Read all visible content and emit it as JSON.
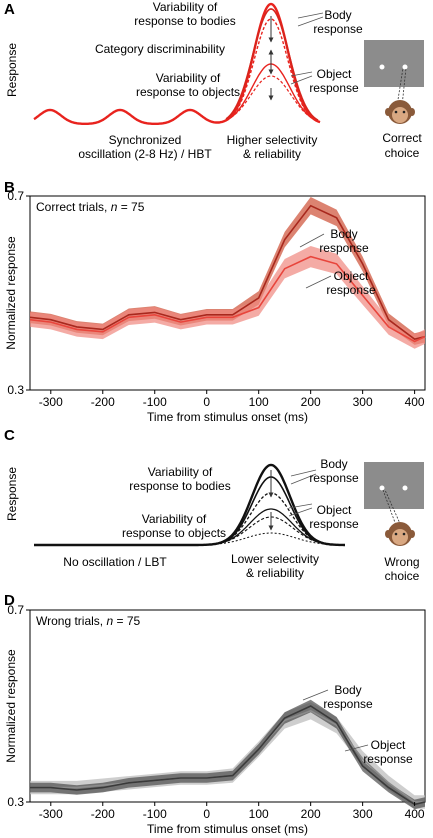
{
  "panels": [
    {
      "letter": "A",
      "type": "schematic",
      "ylabel": "Response",
      "annotations": {
        "var_bodies_1": "Variability of",
        "var_bodies_2": "response to bodies",
        "category": "Category discriminability",
        "var_objects_1": "Variability of",
        "var_objects_2": "response to objects",
        "body_1": "Body",
        "body_2": "response",
        "object_1": "Object",
        "object_2": "response",
        "osc_1": "Synchronized",
        "osc_2": "oscillation (2-8 Hz) / HBT",
        "sel_1": "Higher selectivity",
        "sel_2": "& reliability",
        "choice_1": "Correct",
        "choice_2": "choice"
      },
      "color": "#e8231e"
    },
    {
      "letter": "C",
      "type": "schematic",
      "ylabel": "Response",
      "annotations": {
        "var_bodies_1": "Variability of",
        "var_bodies_2": "response to bodies",
        "var_objects_1": "Variability of",
        "var_objects_2": "response to objects",
        "body_1": "Body",
        "body_2": "response",
        "object_1": "Object",
        "object_2": "response",
        "osc_1": "No oscillation / LBT",
        "sel_1": "Lower selectivity",
        "sel_2": "& reliability",
        "choice_1": "Wrong",
        "choice_2": "choice"
      },
      "color": "#111111"
    }
  ],
  "chart_data": [
    {
      "type": "line",
      "letter": "B",
      "title": "Correct trials, n = 75",
      "title_main": "Correct trials, ",
      "title_n": "n",
      "title_rest": " = 75",
      "xlabel": "Time from stimulus onset (ms)",
      "ylabel": "Normalized response",
      "xlim": [
        -340,
        420
      ],
      "ylim": [
        0.3,
        0.7
      ],
      "xticks": [
        -300,
        -200,
        -100,
        0,
        100,
        200,
        300,
        400
      ],
      "yticks": [
        0.3,
        0.7
      ],
      "x": [
        -340,
        -300,
        -250,
        -200,
        -150,
        -100,
        -50,
        0,
        50,
        100,
        150,
        200,
        250,
        300,
        350,
        400,
        420
      ],
      "series": [
        {
          "name": "Body response",
          "label_1": "Body",
          "label_2": "response",
          "color": "#a8281d",
          "band_color": "#d05a42",
          "values": [
            0.45,
            0.445,
            0.43,
            0.425,
            0.455,
            0.46,
            0.445,
            0.455,
            0.455,
            0.49,
            0.61,
            0.68,
            0.655,
            0.56,
            0.445,
            0.405,
            0.41
          ],
          "err": [
            0.012,
            0.012,
            0.012,
            0.012,
            0.013,
            0.013,
            0.012,
            0.012,
            0.012,
            0.014,
            0.016,
            0.018,
            0.017,
            0.015,
            0.013,
            0.012,
            0.012
          ]
        },
        {
          "name": "Object response",
          "label_1": "Object",
          "label_2": "response",
          "color": "#e8453c",
          "band_color": "#f0877f",
          "values": [
            0.445,
            0.44,
            0.425,
            0.42,
            0.45,
            0.455,
            0.44,
            0.45,
            0.45,
            0.47,
            0.55,
            0.575,
            0.56,
            0.495,
            0.43,
            0.4,
            0.41
          ],
          "err": [
            0.015,
            0.015,
            0.015,
            0.015,
            0.016,
            0.016,
            0.015,
            0.015,
            0.015,
            0.017,
            0.02,
            0.022,
            0.021,
            0.019,
            0.016,
            0.015,
            0.015
          ]
        }
      ]
    },
    {
      "type": "line",
      "letter": "D",
      "title": "Wrong trials, n = 75",
      "title_main": "Wrong trials, ",
      "title_n": "n",
      "title_rest": " = 75",
      "xlabel": "Time from stimulus onset (ms)",
      "ylabel": "Normalized response",
      "xlim": [
        -340,
        420
      ],
      "ylim": [
        0.3,
        0.7
      ],
      "xticks": [
        -300,
        -200,
        -100,
        0,
        100,
        200,
        300,
        400
      ],
      "yticks": [
        0.3,
        0.7
      ],
      "x": [
        -340,
        -300,
        -250,
        -200,
        -150,
        -100,
        -50,
        0,
        50,
        100,
        150,
        200,
        250,
        300,
        350,
        400,
        420
      ],
      "series": [
        {
          "name": "Object response",
          "label_1": "Object",
          "label_2": "response",
          "color": "#8c8c8c",
          "band_color": "#bdbdbd",
          "values": [
            0.33,
            0.33,
            0.33,
            0.335,
            0.34,
            0.345,
            0.35,
            0.35,
            0.355,
            0.41,
            0.47,
            0.49,
            0.46,
            0.39,
            0.34,
            0.3,
            0.3
          ],
          "err": [
            0.014,
            0.014,
            0.014,
            0.014,
            0.014,
            0.014,
            0.014,
            0.014,
            0.015,
            0.016,
            0.017,
            0.018,
            0.017,
            0.016,
            0.015,
            0.014,
            0.014
          ]
        },
        {
          "name": "Body response",
          "label_1": "Body",
          "label_2": "response",
          "color": "#3a3a3a",
          "band_color": "#4d4d4d",
          "values": [
            0.33,
            0.33,
            0.325,
            0.33,
            0.34,
            0.345,
            0.35,
            0.35,
            0.355,
            0.41,
            0.475,
            0.5,
            0.465,
            0.375,
            0.33,
            0.295,
            0.3
          ],
          "err": [
            0.01,
            0.01,
            0.01,
            0.01,
            0.01,
            0.01,
            0.01,
            0.01,
            0.01,
            0.011,
            0.012,
            0.013,
            0.012,
            0.011,
            0.01,
            0.01,
            0.01
          ]
        }
      ]
    }
  ]
}
